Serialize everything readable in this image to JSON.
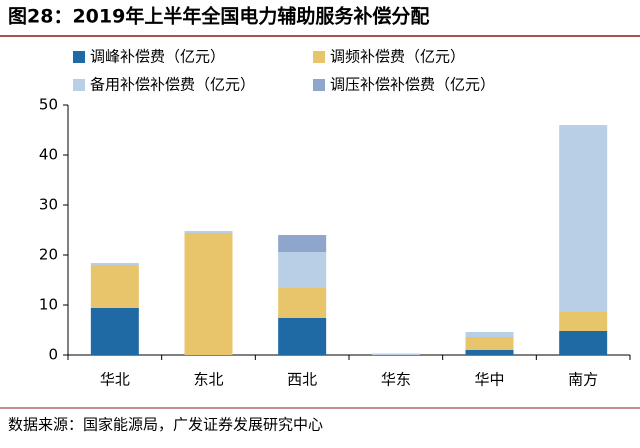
{
  "chart_data": {
    "type": "stacked_bar",
    "title": "图28：2019年上半年全国电力辅助服务补偿分配",
    "source": "数据来源：国家能源局，广发证券发展研究中心",
    "categories": [
      "华北",
      "东北",
      "西北",
      "华东",
      "华中",
      "南方"
    ],
    "series": [
      {
        "name": "调峰补偿费（亿元）",
        "color": "#1f6aa5",
        "values": [
          9.4,
          0,
          7.4,
          0,
          1,
          4.8
        ]
      },
      {
        "name": "调频补偿费（亿元）",
        "color": "#e8c46a",
        "values": [
          8.6,
          24.4,
          6,
          0,
          2.6,
          3.8
        ]
      },
      {
        "name": "备用补偿补偿费（亿元）",
        "color": "#b8cfe6",
        "values": [
          0.4,
          0.4,
          7.2,
          0.3,
          1,
          37.4
        ]
      },
      {
        "name": "调压补偿补偿费（亿元）",
        "color": "#8fa6cc",
        "values": [
          0,
          0,
          3.4,
          0,
          0,
          0
        ]
      }
    ],
    "ylim": [
      0,
      50
    ],
    "yticks": [
      0,
      10,
      20,
      30,
      40,
      50
    ],
    "grid": false,
    "legend": "top"
  }
}
